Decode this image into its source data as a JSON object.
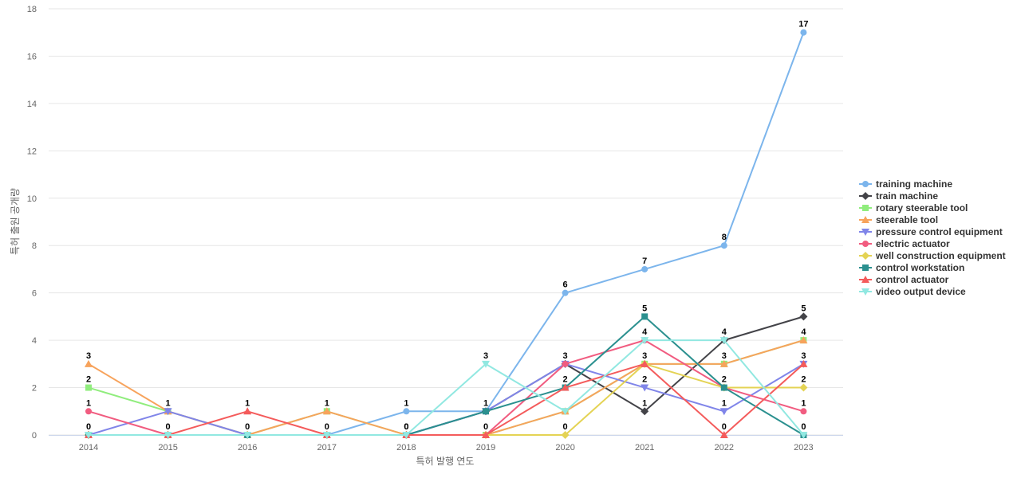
{
  "chart_data": {
    "type": "line",
    "title": "",
    "xlabel": "특허 발행 연도",
    "ylabel": "특허 출원 공개량",
    "categories": [
      "2014",
      "2015",
      "2016",
      "2017",
      "2018",
      "2019",
      "2020",
      "2021",
      "2022",
      "2023"
    ],
    "ylim": [
      0,
      18
    ],
    "yticks": [
      0,
      2,
      4,
      6,
      8,
      10,
      12,
      14,
      16,
      18
    ],
    "grid": true,
    "legend_position": "right",
    "series": [
      {
        "name": "training machine",
        "color": "#7cb5ec",
        "marker": "circle",
        "values": [
          0,
          0,
          0,
          0,
          1,
          1,
          6,
          7,
          8,
          17
        ],
        "labels": [
          false,
          false,
          false,
          false,
          true,
          false,
          true,
          true,
          true,
          true
        ]
      },
      {
        "name": "train machine",
        "color": "#434348",
        "marker": "diamond",
        "values": [
          0,
          0,
          0,
          0,
          0,
          1,
          3,
          1,
          4,
          5
        ],
        "labels": [
          false,
          false,
          false,
          false,
          false,
          false,
          false,
          true,
          false,
          true
        ]
      },
      {
        "name": "rotary steerable tool",
        "color": "#90ed7d",
        "marker": "square",
        "values": [
          2,
          1,
          0,
          1,
          0,
          0,
          1,
          3,
          3,
          4
        ],
        "labels": [
          true,
          false,
          false,
          false,
          false,
          false,
          false,
          false,
          false,
          false
        ]
      },
      {
        "name": "steerable tool",
        "color": "#f7a35c",
        "marker": "triangle",
        "values": [
          3,
          1,
          0,
          1,
          0,
          0,
          1,
          3,
          3,
          4
        ],
        "labels": [
          true,
          true,
          false,
          true,
          false,
          false,
          false,
          false,
          true,
          true
        ]
      },
      {
        "name": "pressure control equipment",
        "color": "#8085e9",
        "marker": "triangle-down",
        "values": [
          0,
          1,
          0,
          0,
          0,
          1,
          3,
          2,
          1,
          3
        ],
        "labels": [
          false,
          false,
          false,
          false,
          false,
          false,
          false,
          true,
          true,
          false
        ]
      },
      {
        "name": "electric actuator",
        "color": "#f15c80",
        "marker": "circle",
        "values": [
          1,
          0,
          0,
          0,
          0,
          0,
          3,
          4,
          2,
          1
        ],
        "labels": [
          true,
          false,
          false,
          false,
          false,
          false,
          true,
          true,
          false,
          true
        ]
      },
      {
        "name": "well construction equipment",
        "color": "#e4d354",
        "marker": "diamond",
        "values": [
          0,
          0,
          0,
          0,
          0,
          0,
          0,
          3,
          2,
          2
        ],
        "labels": [
          false,
          false,
          false,
          false,
          false,
          false,
          true,
          false,
          true,
          true
        ]
      },
      {
        "name": "control workstation",
        "color": "#2b908f",
        "marker": "square",
        "values": [
          0,
          0,
          0,
          0,
          0,
          1,
          2,
          5,
          2,
          0
        ],
        "labels": [
          true,
          false,
          true,
          false,
          false,
          true,
          true,
          true,
          false,
          false
        ]
      },
      {
        "name": "control actuator",
        "color": "#f45b5b",
        "marker": "triangle",
        "values": [
          0,
          0,
          1,
          0,
          0,
          0,
          2,
          3,
          0,
          3
        ],
        "labels": [
          false,
          true,
          true,
          true,
          true,
          true,
          false,
          true,
          true,
          true
        ]
      },
      {
        "name": "video output device",
        "color": "#91e8e1",
        "marker": "triangle-down",
        "values": [
          0,
          0,
          0,
          0,
          0,
          3,
          1,
          4,
          4,
          0
        ],
        "labels": [
          false,
          false,
          false,
          false,
          true,
          true,
          false,
          false,
          true,
          true
        ]
      }
    ]
  }
}
